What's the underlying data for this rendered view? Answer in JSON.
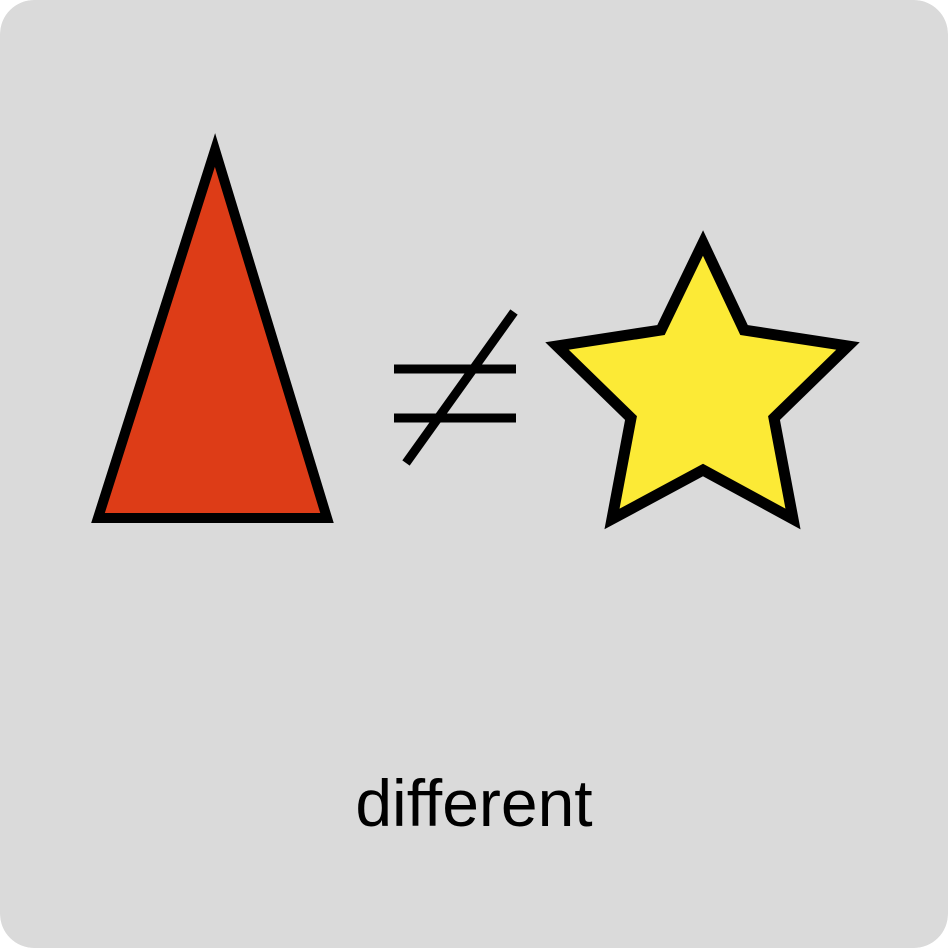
{
  "card": {
    "background_color": "#dadada",
    "caption": "different"
  },
  "shapes": {
    "left": {
      "name": "triangle-icon",
      "fill": "#dd3c17",
      "stroke": "#000000"
    },
    "operator": {
      "name": "not-equal-icon",
      "stroke": "#000000"
    },
    "right": {
      "name": "star-icon",
      "fill": "#fcea36",
      "stroke": "#000000"
    }
  }
}
